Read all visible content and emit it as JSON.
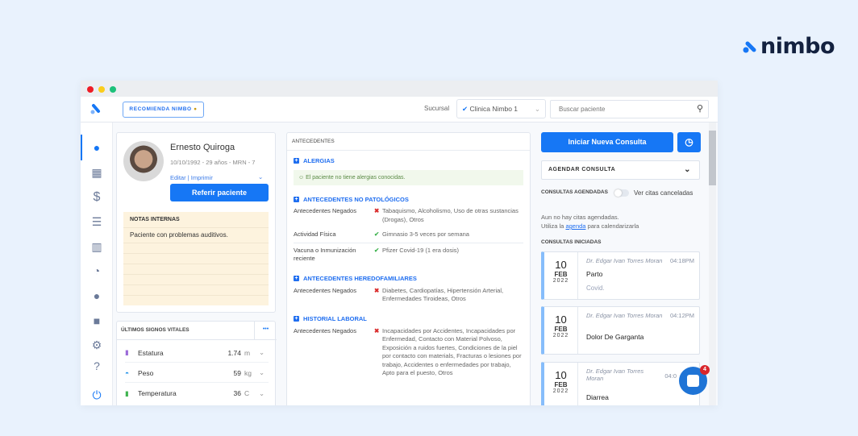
{
  "brand": {
    "name": "nimbo",
    "color": "#1677f5"
  },
  "header": {
    "recommend_label": "RECOMIENDA NIMBO",
    "branch_label": "Sucursal",
    "branch_value": "Clinica Nimbo 1",
    "search_placeholder": "Buscar paciente"
  },
  "sidebar": {
    "items": [
      "user-icon",
      "calendar-icon",
      "dollar-icon",
      "list-icon",
      "bar-chart-icon",
      "pie-chart-icon",
      "chat-icon",
      "video-icon",
      "settings-icon",
      "help-icon",
      "power-icon"
    ]
  },
  "patient": {
    "name": "Ernesto Quiroga",
    "meta": "10/10/1992 - 29 años - MRN - 7",
    "edit": "Editar",
    "sep": "|",
    "print": "Imprimir",
    "refer_label": "Referir paciente",
    "notes_title": "NOTAS INTERNAS",
    "notes_text": "Paciente con problemas auditivos."
  },
  "vitals": {
    "title": "ÚLTIMOS SIGNOS VITALES",
    "more": "•••",
    "items": [
      {
        "label": "Estatura",
        "value": "1.74",
        "unit": "m"
      },
      {
        "label": "Peso",
        "value": "59",
        "unit": "kg"
      },
      {
        "label": "Temperatura",
        "value": "36",
        "unit": "C"
      }
    ]
  },
  "history": {
    "title": "ANTECEDENTES",
    "allergies": {
      "title": "ALERGIAS",
      "message": "El paciente no tiene alergias conocidas."
    },
    "nonpath": {
      "title": "ANTECEDENTES NO PATOLÓGICOS",
      "rows": [
        {
          "k": "Antecedentes Negados",
          "mark": "✖",
          "v": "Tabaquismo, Alcoholismo, Uso de otras sustancias (Drogas), Otros"
        },
        {
          "k": "Actividad Física",
          "mark": "✔",
          "v": "Gimnasio 3-5 veces por semana"
        },
        {
          "k": "Vacuna o Inmunización reciente",
          "mark": "✔",
          "v": "Pfizer Covid-19 (1 era dosis)"
        }
      ]
    },
    "hered": {
      "title": "ANTECEDENTES HEREDOFAMILIARES",
      "rows": [
        {
          "k": "Antecedentes Negados",
          "mark": "✖",
          "v": "Diabetes, Cardiopatías, Hipertensión Arterial, Enfermedades Tiroideas, Otros"
        }
      ]
    },
    "labor": {
      "title": "HISTORIAL LABORAL",
      "rows": [
        {
          "k": "Antecedentes Negados",
          "mark": "✖",
          "v": "Incapacidades por Accidentes, Incapacidades por Enfermedad, Contacto con Material Polvoso, Exposición a ruidos fuertes, Condiciones de la piel por contacto con materials, Fracturas o lesiones por trabajo, Accidentes o enfermedades por trabajo, Apto para el puesto, Otros"
        }
      ]
    }
  },
  "consults": {
    "new_label": "Iniciar Nueva Consulta",
    "schedule_label": "AGENDAR CONSULTA",
    "scheduled_title": "CONSULTAS AGENDADAS",
    "show_cancelled": "Ver citas canceladas",
    "show_cancelled_on": false,
    "empty_line1": "Aun no hay citas agendadas.",
    "empty_pre": "Utiliza la",
    "empty_link": "agenda",
    "empty_post": "para calendarizarla",
    "started_title": "CONSULTAS INICIADAS",
    "items": [
      {
        "day": "10",
        "month": "FEB",
        "year": "2022",
        "doctor": "Dr. Edgar Ivan Torres Moran",
        "time": "04:18PM",
        "reason": "Parto",
        "note": "Covid."
      },
      {
        "day": "10",
        "month": "FEB",
        "year": "2022",
        "doctor": "Dr. Edgar Ivan Torres Moran",
        "time": "04:12PM",
        "reason": "Dolor De Garganta",
        "note": ""
      },
      {
        "day": "10",
        "month": "FEB",
        "year": "2022",
        "doctor": "Dr. Edgar Ivan Torres Moran",
        "time": "04:0",
        "reason": "Diarrea",
        "note": ""
      }
    ]
  },
  "chat": {
    "badge": "4"
  }
}
